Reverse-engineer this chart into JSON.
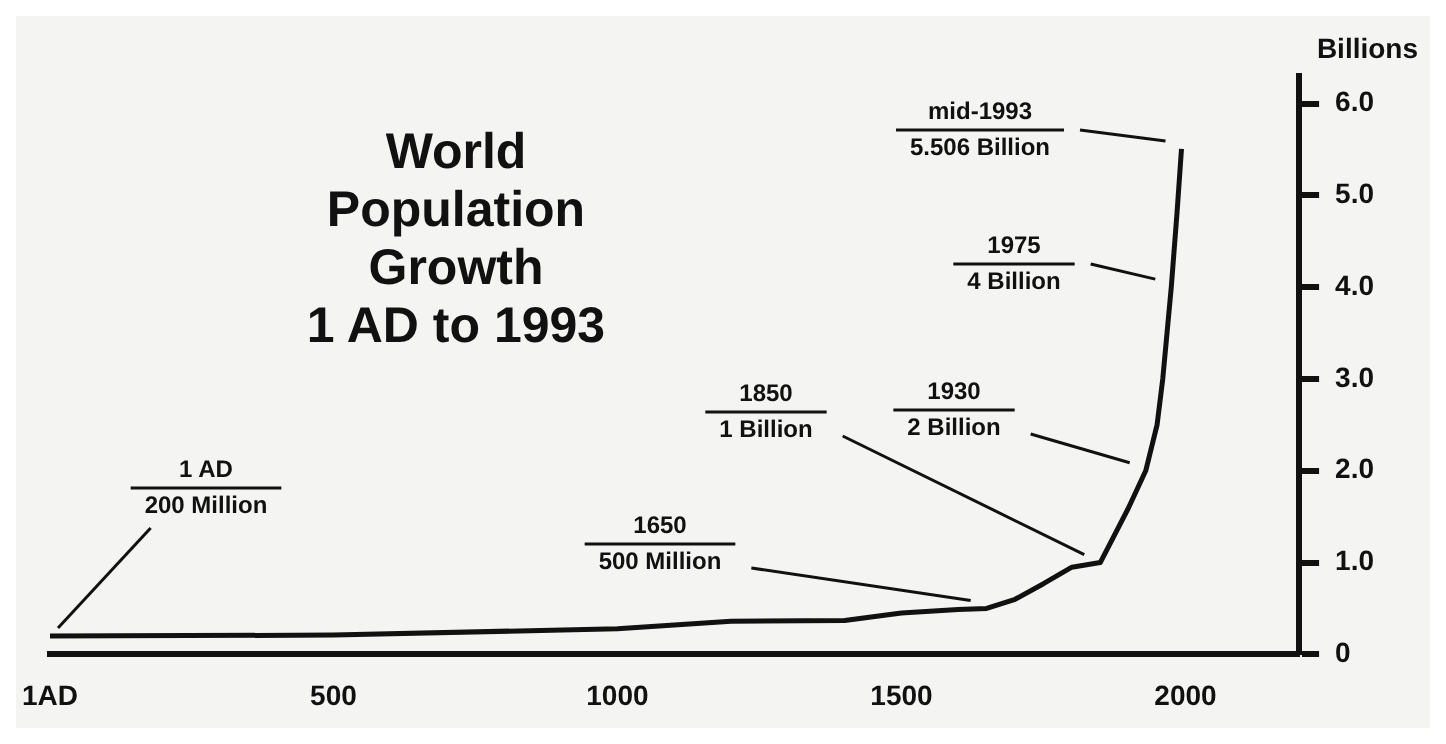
{
  "chart_data": {
    "type": "line",
    "title": "World\nPopulation Growth\n1 AD to 1993",
    "ylabel": "Billions",
    "x": [
      1,
      500,
      1000,
      1200,
      1400,
      1500,
      1600,
      1650,
      1700,
      1750,
      1800,
      1850,
      1900,
      1930,
      1950,
      1960,
      1975,
      1985,
      1993
    ],
    "series": [
      {
        "color": "#111111",
        "values": [
          0.2,
          0.21,
          0.28,
          0.36,
          0.37,
          0.45,
          0.49,
          0.5,
          0.6,
          0.77,
          0.95,
          1.0,
          1.6,
          2.0,
          2.5,
          3.0,
          4.0,
          4.8,
          5.506
        ]
      }
    ],
    "xlim": [
      1,
      2200
    ],
    "xticks": [
      {
        "value": 1,
        "label": "1AD"
      },
      500,
      1000,
      1500,
      2000
    ],
    "ylim": [
      0,
      6.3
    ],
    "yticks": [
      0,
      {
        "value": 1,
        "label": "1.0"
      },
      {
        "value": 2,
        "label": "2.0"
      },
      {
        "value": 3,
        "label": "3.0"
      },
      {
        "value": 4,
        "label": "4.0"
      },
      {
        "value": 5,
        "label": "5.0"
      },
      {
        "value": 6,
        "label": "6.0"
      }
    ],
    "grid": false,
    "legend": false,
    "marker": "none",
    "line_style": "solid",
    "annotations": [
      {
        "text": "1 AD\n200 Million",
        "x": 1,
        "y": 0.2
      },
      {
        "text": "1650\n500 Million",
        "x": 1650,
        "y": 0.5
      },
      {
        "text": "1850\n1 Billion",
        "x": 1850,
        "y": 1.0
      },
      {
        "text": "1930\n2 Billion",
        "x": 1930,
        "y": 2.0
      },
      {
        "text": "1975\n4 Billion",
        "x": 1975,
        "y": 4.0
      },
      {
        "text": "mid-1993\n5.506 Billion",
        "x": 1993,
        "y": 5.506
      }
    ]
  }
}
